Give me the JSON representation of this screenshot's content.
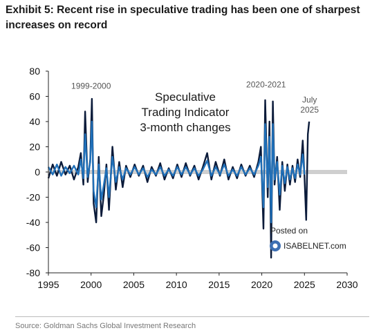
{
  "header": {
    "title": "Exhibit 5: Recent rise in speculative trading has been one of sharpest increases on record"
  },
  "footer": {
    "source": "Source: Goldman Sachs Global Investment Research"
  },
  "watermark": {
    "line1": "Posted on",
    "line2": "ISABELNET.com"
  },
  "colors": {
    "navy_series": "#0b1b3a",
    "blue_series": "#1f6fb8",
    "zero_line": "#cfcfcf"
  },
  "chart_data": {
    "type": "line",
    "title": "Speculative Trading Indicator 3-month changes",
    "title_lines": [
      "Speculative",
      "Trading Indicator",
      "3-month changes"
    ],
    "xlabel": "",
    "ylabel": "",
    "xlim": [
      1995,
      2030
    ],
    "ylim": [
      -80,
      80
    ],
    "x_ticks": [
      "1995",
      "2000",
      "2005",
      "2010",
      "2015",
      "2020",
      "2025",
      "2030"
    ],
    "y_ticks": [
      "80",
      "60",
      "40",
      "20",
      "0",
      "-20",
      "-40",
      "-60",
      "-80"
    ],
    "annotations": [
      {
        "text": "1999-2000",
        "x": 2000.0,
        "y": 66
      },
      {
        "text": "2020-2021",
        "x": 2020.5,
        "y": 67
      },
      {
        "text": "July",
        "x": 2025.6,
        "y": 55
      },
      {
        "text": "2025",
        "x": 2025.6,
        "y": 47
      }
    ],
    "series": [
      {
        "x": [
          1995.0,
          1995.5,
          1996.0,
          1996.5,
          1997.0,
          1997.5,
          1998.0,
          1998.5,
          1998.8,
          1999.1,
          1999.3,
          1999.6,
          1999.9,
          2000.1,
          2000.3,
          2000.6,
          2000.9,
          2001.2,
          2001.5,
          2001.8,
          2002.1,
          2002.5,
          2002.9,
          2003.3,
          2003.7,
          2004.1,
          2004.6,
          2005.1,
          2005.6,
          2006.1,
          2006.6,
          2007.1,
          2007.6,
          2008.1,
          2008.6,
          2009.1,
          2009.6,
          2010.1,
          2010.6,
          2011.1,
          2011.6,
          2012.1,
          2012.6,
          2013.1,
          2013.6,
          2014.1,
          2014.6,
          2015.1,
          2015.6,
          2016.1,
          2016.6,
          2017.1,
          2017.6,
          2018.1,
          2018.6,
          2019.1,
          2019.6,
          2019.9,
          2020.2,
          2020.4,
          2020.7,
          2020.9,
          2021.1,
          2021.3,
          2021.5,
          2021.8,
          2022.1,
          2022.4,
          2022.7,
          2023.0,
          2023.3,
          2023.6,
          2023.9,
          2024.2,
          2024.5,
          2024.8,
          2025.0,
          2025.2,
          2025.4,
          2025.55
        ],
        "values": [
          -5,
          6,
          -3,
          8,
          -2,
          5,
          -6,
          4,
          15,
          -10,
          48,
          -8,
          10,
          58,
          -25,
          -40,
          12,
          -35,
          -18,
          6,
          -30,
          20,
          -14,
          8,
          -12,
          5,
          -4,
          6,
          -3,
          5,
          -8,
          4,
          -3,
          7,
          -6,
          3,
          -5,
          6,
          -4,
          7,
          -3,
          5,
          -6,
          4,
          15,
          -6,
          8,
          -3,
          10,
          -6,
          4,
          -5,
          6,
          -3,
          5,
          -4,
          8,
          20,
          -45,
          57,
          -20,
          40,
          -68,
          56,
          -10,
          12,
          -30,
          8,
          -15,
          6,
          -10,
          5,
          -8,
          10,
          -4,
          25,
          -3,
          -38,
          30,
          40
        ]
      },
      {
        "x": [
          1995.0,
          1995.5,
          1996.0,
          1996.5,
          1997.0,
          1997.5,
          1998.0,
          1998.5,
          1998.8,
          1999.1,
          1999.3,
          1999.6,
          1999.9,
          2000.1,
          2000.3,
          2000.6,
          2000.9,
          2001.2,
          2001.5,
          2001.8,
          2002.1,
          2002.5,
          2002.9,
          2003.3,
          2003.7,
          2004.1,
          2004.6,
          2005.1,
          2005.6,
          2006.1,
          2006.6,
          2007.1,
          2007.6,
          2008.1,
          2008.6,
          2009.1,
          2009.6,
          2010.1,
          2010.6,
          2011.1,
          2011.6,
          2012.1,
          2012.6,
          2013.1,
          2013.6,
          2014.1,
          2014.6,
          2015.1,
          2015.6,
          2016.1,
          2016.6,
          2017.1,
          2017.6,
          2018.1,
          2018.6,
          2019.1,
          2019.6,
          2019.9,
          2020.2,
          2020.4,
          2020.7,
          2020.9,
          2021.1,
          2021.3,
          2021.5,
          2021.8,
          2022.1,
          2022.4,
          2022.7,
          2023.0,
          2023.3,
          2023.6,
          2023.9,
          2024.2,
          2024.5,
          2024.8,
          2025.0
        ],
        "values": [
          4,
          -2,
          6,
          -3,
          4,
          -1,
          5,
          -2,
          10,
          -5,
          30,
          -4,
          8,
          40,
          -15,
          -28,
          6,
          -22,
          -10,
          3,
          -20,
          12,
          -8,
          4,
          -6,
          3,
          -2,
          4,
          -2,
          3,
          -4,
          2,
          -2,
          4,
          -3,
          2,
          -3,
          4,
          -2,
          4,
          -2,
          3,
          -3,
          2,
          9,
          -3,
          4,
          -2,
          6,
          -3,
          2,
          -3,
          4,
          -2,
          3,
          -2,
          5,
          12,
          -28,
          38,
          -12,
          28,
          -40,
          38,
          -6,
          8,
          -18,
          5,
          -9,
          4,
          -6,
          3,
          -5,
          6,
          -2,
          14,
          -2
        ]
      }
    ]
  }
}
